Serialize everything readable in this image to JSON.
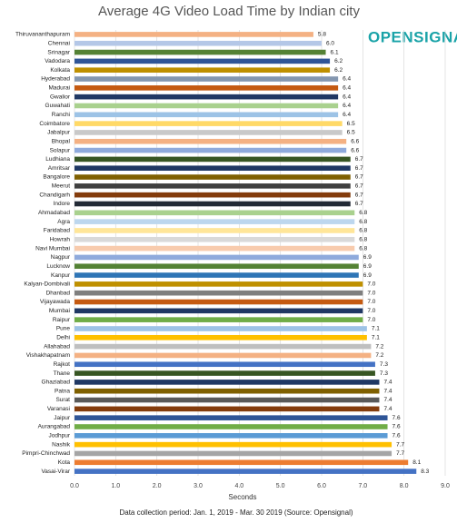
{
  "chart_data": {
    "type": "hbar",
    "title": "Average 4G Video Load Time by Indian city",
    "logo": "OPENSIGNAL",
    "x_label": "Seconds",
    "caption": "Data collection period: Jan. 1, 2019 - Mar. 30 2019 (Source: Opensignal)",
    "categories": [
      "Thiruvananthapuram",
      "Chennai",
      "Srinagar",
      "Vadodara",
      "Kolkata",
      "Hyderabad",
      "Madurai",
      "Gwalior",
      "Guwahati",
      "Ranchi",
      "Coimbatore",
      "Jabalpur",
      "Bhopal",
      "Solapur",
      "Ludhiana",
      "Amritsar",
      "Bangalore",
      "Meerut",
      "Chandigarh",
      "Indore",
      "Ahmadabad",
      "Agra",
      "Faridabad",
      "Howrah",
      "Navi Mumbai",
      "Nagpur",
      "Lucknow",
      "Kanpur",
      "Kalyan-Dombivali",
      "Dhanbad",
      "Vijayawada",
      "Mumbai",
      "Raipur",
      "Pune",
      "Delhi",
      "Allahabad",
      "Vishakhapatnam",
      "Rajkot",
      "Thane",
      "Ghaziabad",
      "Patna",
      "Surat",
      "Varanasi",
      "Jaipur",
      "Aurangabad",
      "Jodhpur",
      "Nashik",
      "Pimpri-Chinchwad",
      "Kota",
      "Vasai-Virar"
    ],
    "values": [
      5.8,
      6,
      6.1,
      6.2,
      6.2,
      6.4,
      6.4,
      6.4,
      6.4,
      6.4,
      6.5,
      6.5,
      6.6,
      6.6,
      6.7,
      6.7,
      6.7,
      6.7,
      6.7,
      6.7,
      6.8,
      6.8,
      6.8,
      6.8,
      6.8,
      6.9,
      6.9,
      6.9,
      7,
      7,
      7,
      7,
      7,
      7.1,
      7.1,
      7.2,
      7.2,
      7.3,
      7.3,
      7.4,
      7.4,
      7.4,
      7.4,
      7.6,
      7.6,
      7.6,
      7.7,
      7.7,
      8.1,
      8.3
    ],
    "value_labels": [
      "5.8",
      "6.0",
      "6.1",
      "6.2",
      "6.2",
      "6.4",
      "6.4",
      "6.4",
      "6.4",
      "6.4",
      "6.5",
      "6.5",
      "6.6",
      "6.6",
      "6.7",
      "6.7",
      "6.7",
      "6.7",
      "6.7",
      "6.7",
      "6.8",
      "6.8",
      "6.8",
      "6.8",
      "6.8",
      "6.9",
      "6.9",
      "6.9",
      "7.0",
      "7.0",
      "7.0",
      "7.0",
      "7.0",
      "7.1",
      "7.1",
      "7.2",
      "7.2",
      "7.3",
      "7.3",
      "7.4",
      "7.4",
      "7.4",
      "7.4",
      "7.6",
      "7.6",
      "7.6",
      "7.7",
      "7.7",
      "8.1",
      "8.3"
    ],
    "colors": [
      "#f4b183",
      "#b4c7e7",
      "#548235",
      "#2f5597",
      "#bf9000",
      "#8497b0",
      "#c55a11",
      "#203864",
      "#a9d18e",
      "#9dc3e6",
      "#ffd966",
      "#c9c9c9",
      "#f4b183",
      "#8faadc",
      "#375623",
      "#1f3864",
      "#7f6000",
      "#404040",
      "#843c0c",
      "#222a35",
      "#a9d18e",
      "#bdd7ee",
      "#ffe699",
      "#d9d9d9",
      "#f8cbad",
      "#8faadc",
      "#548235",
      "#2e75b6",
      "#bf9000",
      "#7f7f7f",
      "#c55a11",
      "#203864",
      "#70ad47",
      "#9dc3e6",
      "#ffc000",
      "#bfbfbf",
      "#f4b183",
      "#4472c4",
      "#375623",
      "#1f3864",
      "#7f6000",
      "#595959",
      "#843c0c",
      "#2f5597",
      "#70ad47",
      "#5b9bd5",
      "#ffc000",
      "#a5a5a5",
      "#ed7d31",
      "#4472c4"
    ],
    "xlim": [
      0,
      9
    ],
    "xticks": [
      {
        "value": 0,
        "label": "0.0"
      },
      {
        "value": 1,
        "label": "1.0"
      },
      {
        "value": 2,
        "label": "2.0"
      },
      {
        "value": 3,
        "label": "3.0"
      },
      {
        "value": 4,
        "label": "4.0"
      },
      {
        "value": 5,
        "label": "5.0"
      },
      {
        "value": 6,
        "label": "6.0"
      },
      {
        "value": 7,
        "label": "7.0"
      },
      {
        "value": 8,
        "label": "8.0"
      },
      {
        "value": 9,
        "label": "9.0"
      }
    ],
    "grid": true
  }
}
